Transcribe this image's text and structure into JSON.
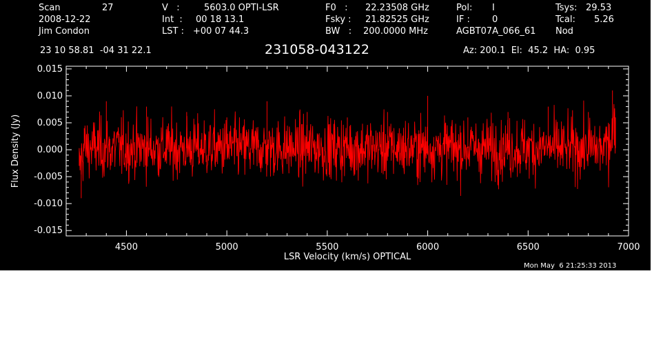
{
  "header": {
    "scan_label": "Scan",
    "scan_value": "27",
    "date": "2008-12-22",
    "observer": "Jim Condon",
    "v_label": "V   :",
    "v_value": "5603.0 OPTI-LSR",
    "int_label": "Int  :",
    "int_value": "00 18 13.1",
    "lst_label": "LST :",
    "lst_value": "+00 07 44.3",
    "f0_label": "F0   :",
    "f0_value": "22.23508 GHz",
    "fsky_label": "Fsky :",
    "fsky_value": "21.82525 GHz",
    "bw_label": "BW   :",
    "bw_value": "200.0000 MHz",
    "pol_label": "Pol:",
    "pol_value": "I",
    "if_label": "IF :",
    "if_value": "0",
    "project": "AGBT07A_066_61",
    "tsys_label": "Tsys:",
    "tsys_value": "29.53",
    "tcal_label": "Tcal:",
    "tcal_value": "5.26",
    "proc": "Nod",
    "coords": "23 10 58.81  -04 31 22.1",
    "source": "231058-043122",
    "az_el_ha": "Az: 200.1  El:  45.2  HA:  0.95",
    "timestamp": "Mon May  6 21:25:33 2013"
  },
  "chart_data": {
    "type": "line",
    "title": "231058-043122",
    "xlabel": "LSR Velocity (km/s) OPTICAL",
    "ylabel": "Flux Density (Jy)",
    "xlim": [
      4200,
      7000
    ],
    "ylim": [
      -0.016,
      0.0155
    ],
    "x_ticks": [
      4500,
      5000,
      5500,
      6000,
      6500,
      7000
    ],
    "x_tick_labels": [
      "4500",
      "5000",
      "5500",
      "6000",
      "6500",
      "7000"
    ],
    "y_ticks": [
      0.015,
      0.01,
      0.005,
      0.0,
      -0.005,
      -0.01,
      -0.015
    ],
    "y_tick_labels": [
      "0.015",
      "0.010",
      "0.005",
      "0.000",
      "-0.005",
      "-0.010",
      "-0.015"
    ],
    "series": [
      {
        "color": "#ff0000",
        "x_range": [
          4265,
          6935
        ],
        "noise_rms": 0.0028,
        "baseline": 0.0003,
        "x": [
          4265,
          4275,
          4290,
          4400,
          4600,
          4800,
          5000,
          5200,
          5400,
          5600,
          5800,
          6000,
          6200,
          6400,
          6600,
          6800,
          6900,
          6920,
          6935
        ],
        "y": [
          -0.003,
          -0.009,
          0.004,
          0.009,
          0.008,
          0.007,
          0.006,
          0.009,
          0.007,
          0.006,
          0.007,
          0.01,
          0.006,
          0.007,
          0.008,
          0.007,
          0.005,
          0.011,
          0.006
        ]
      }
    ],
    "grid": false,
    "background": "#000000",
    "axis_color": "#ffffff"
  }
}
